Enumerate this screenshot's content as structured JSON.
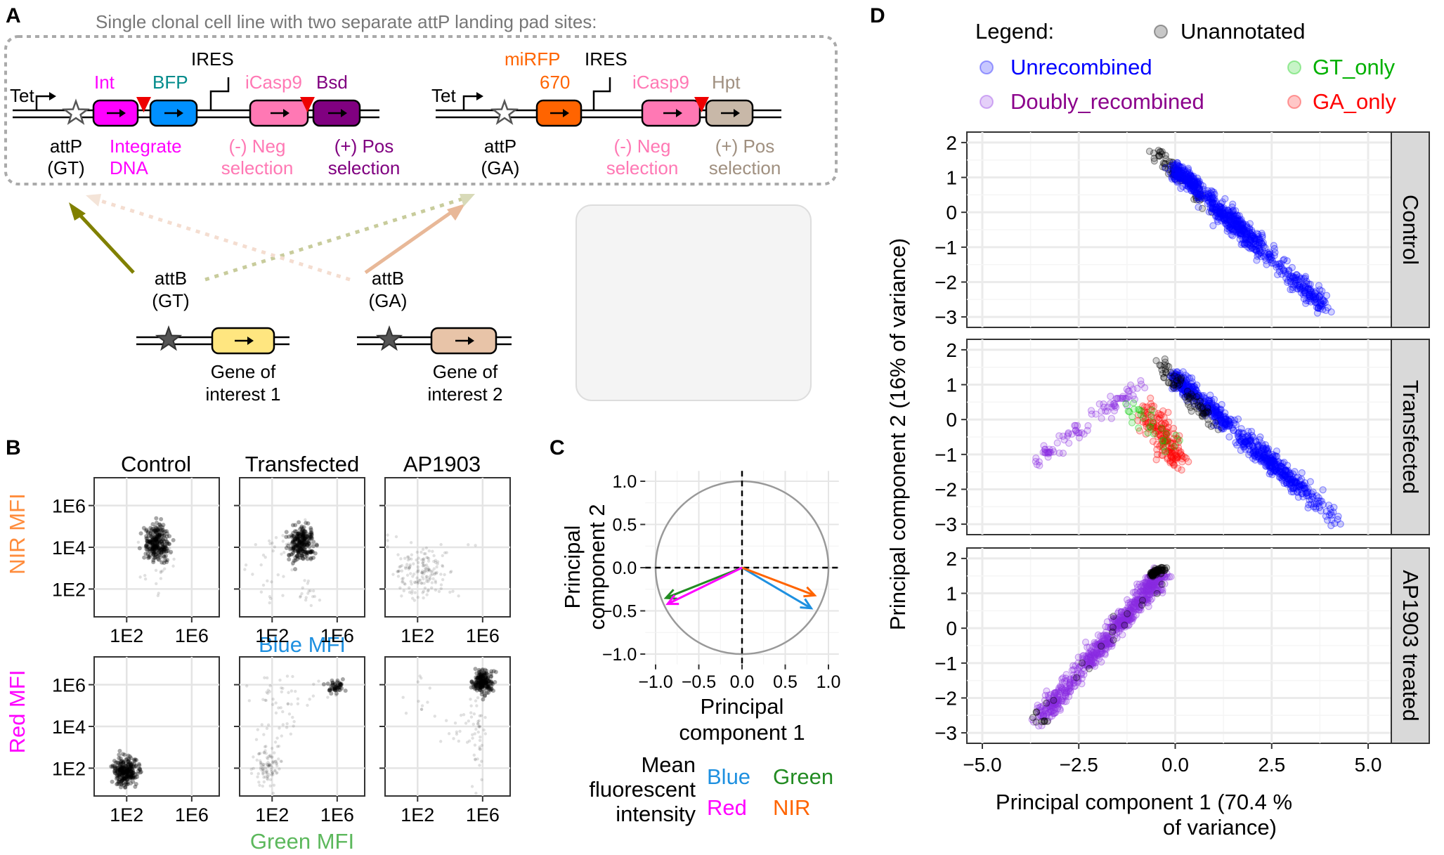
{
  "panel_labels": {
    "a": "A",
    "b": "B",
    "c": "C",
    "d": "D"
  },
  "panelA": {
    "header": "Single clonal cell line with two separate attP landing pad sites:",
    "site1": {
      "tet": "Tet",
      "ires": "IRES",
      "int": "Int",
      "bfp": "BFP",
      "icasp9": "iCasp9",
      "bsd": "Bsd",
      "attp1": "attP",
      "attp2": "(GT)",
      "intdesc1": "Integrate",
      "intdesc2": "DNA",
      "neg1": "(-) Neg",
      "neg2": "selection",
      "pos1": "(+) Pos",
      "pos2": "selection"
    },
    "site2": {
      "tet": "Tet",
      "ires": "IRES",
      "mirfp1": "miRFP",
      "mirfp2": "670",
      "icasp9": "iCasp9",
      "hpt": "Hpt",
      "attp1": "attP",
      "attp2": "(GA)",
      "neg1": "(-) Neg",
      "neg2": "selection",
      "pos1": "(+) Pos",
      "pos2": "selection"
    },
    "attb1": {
      "l1": "attB",
      "l2": "(GT)",
      "gene1": "Gene of",
      "gene2": "interest 1"
    },
    "attb2": {
      "l1": "attB",
      "l2": "(GA)",
      "gene1": "Gene of",
      "gene2": "interest 2"
    },
    "colors": {
      "int": "#ff00ff",
      "bfp": "#0080ff",
      "icasp9": "#ff78b4",
      "bsd": "#800080",
      "mirfp": "#ff6400",
      "hpt": "#c8b8a8",
      "gene1": "#ffe680",
      "gene2": "#e8c4a8",
      "gt_arrow": "#808000",
      "ga_arrow": "#e8b898"
    }
  },
  "panelB": {
    "col_titles": [
      "Control",
      "Transfected",
      "AP1903"
    ],
    "top_ylabel": "NIR MFI",
    "bottom_ylabel": "Red MFI",
    "top_xlabel": "Blue MFI",
    "bottom_xlabel": "Green MFI",
    "yticks_top": [
      "1E6",
      "1E4",
      "1E2"
    ],
    "yticks_bottom": [
      "1E6",
      "1E4",
      "1E2"
    ],
    "xticks": [
      "1E2",
      "1E6"
    ]
  },
  "panelC": {
    "ylabel1": "Principal",
    "ylabel2": "component 2",
    "xlabel1": "Principal",
    "xlabel2": "component 1",
    "yticks": [
      "1.0",
      "0.5",
      "0.0",
      "−0.5",
      "−1.0"
    ],
    "xticks": [
      "−1.0",
      "−0.5",
      "0.0",
      "0.5",
      "1.0"
    ],
    "legend_title": [
      "Mean",
      "fluorescent",
      "intensity"
    ],
    "legend": {
      "blue": "Blue",
      "green": "Green",
      "red": "Red",
      "nir": "NIR"
    },
    "chart_data": {
      "type": "scatter",
      "xlim": [
        -1.1,
        1.1
      ],
      "ylim": [
        -1.1,
        1.1
      ],
      "vectors": [
        {
          "name": "Blue",
          "x": 0.8,
          "y": -0.47,
          "color": "#1e90e0"
        },
        {
          "name": "NIR",
          "x": 0.84,
          "y": -0.32,
          "color": "#ff6400"
        },
        {
          "name": "Green",
          "x": -0.88,
          "y": -0.35,
          "color": "#228b22"
        },
        {
          "name": "Red",
          "x": -0.86,
          "y": -0.42,
          "color": "#ff00ff"
        }
      ]
    }
  },
  "panelD": {
    "legend_title": "Legend:",
    "legend": {
      "unannotated": "Unannotated",
      "unrecombined": "Unrecombined",
      "gt_only": "GT_only",
      "doubly": "Doubly_recombined",
      "ga_only": "GA_only"
    },
    "facets": [
      "Control",
      "Transfected",
      "AP1903 treated"
    ],
    "yticks": [
      "2",
      "1",
      "0",
      "−1",
      "−2",
      "−3"
    ],
    "xticks": [
      "−5.0",
      "−2.5",
      "0.0",
      "2.5",
      "5.0"
    ],
    "ylabel": "Principal component 2 (16% of variance)",
    "xlabel1": "Principal component 1 (70.4 %",
    "xlabel2": "of variance)",
    "chart_data": {
      "type": "scatter",
      "xlim": [
        -5.4,
        5.6
      ],
      "ylim": [
        -3.3,
        2.3
      ],
      "colors": {
        "Unannotated": "#000000",
        "Unrecombined": "#0000ff",
        "GT_only": "#00cc00",
        "Doubly_recombined": "#8a2be2",
        "GA_only": "#ff0000"
      }
    }
  }
}
